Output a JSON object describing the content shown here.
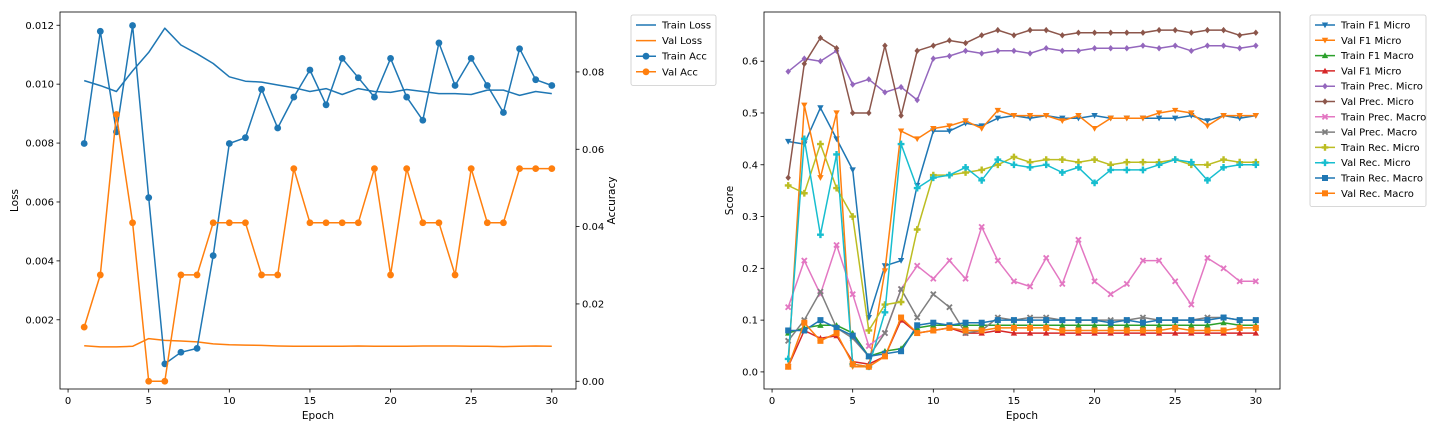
{
  "chart_data": [
    {
      "type": "line",
      "xlabel": "Epoch",
      "ylabel": "Loss",
      "ylabel_right": "Accuracy",
      "xlim": [
        -0.5,
        31.5
      ],
      "xticks": [
        0,
        5,
        10,
        15,
        20,
        25,
        30
      ],
      "ylim": [
        -0.00035,
        0.01245
      ],
      "yticks": [
        "0.002",
        "0.004",
        "0.006",
        "0.008",
        "0.010",
        "0.012"
      ],
      "ylim_right": [
        -0.002,
        0.0955
      ],
      "yticks_right": [
        "0.00",
        "0.02",
        "0.04",
        "0.06",
        "0.08"
      ],
      "legend_position": "outside top-right",
      "x": [
        1,
        2,
        3,
        4,
        5,
        6,
        7,
        8,
        9,
        10,
        11,
        12,
        13,
        14,
        15,
        16,
        17,
        18,
        19,
        20,
        21,
        22,
        23,
        24,
        25,
        26,
        27,
        28,
        29,
        30
      ],
      "series": [
        {
          "name": "Train Loss",
          "axis": "left",
          "color": "#1f77b4",
          "marker": "",
          "values": [
            0.01012,
            0.00995,
            0.00975,
            0.01045,
            0.01108,
            0.0119,
            0.01133,
            0.01103,
            0.0107,
            0.01025,
            0.0101,
            0.01007,
            0.00997,
            0.00988,
            0.00975,
            0.00985,
            0.00965,
            0.00985,
            0.00975,
            0.00972,
            0.00982,
            0.00975,
            0.00968,
            0.00968,
            0.00965,
            0.0098,
            0.0098,
            0.00962,
            0.00975,
            0.00968
          ]
        },
        {
          "name": "Val Loss",
          "axis": "left",
          "color": "#ff7f0e",
          "marker": "",
          "values": [
            0.00112,
            0.00108,
            0.00108,
            0.0011,
            0.00136,
            0.0013,
            0.00128,
            0.00125,
            0.00118,
            0.00115,
            0.00114,
            0.00113,
            0.00111,
            0.0011,
            0.0011,
            0.0011,
            0.0011,
            0.00111,
            0.0011,
            0.0011,
            0.0011,
            0.00111,
            0.00111,
            0.00111,
            0.0011,
            0.0011,
            0.00109,
            0.0011,
            0.00111,
            0.0011
          ]
        },
        {
          "name": "Train Acc",
          "axis": "right",
          "color": "#1f77b4",
          "marker": "o",
          "values": [
            0.0615,
            0.0905,
            0.0645,
            0.092,
            0.0475,
            0.0045,
            0.0075,
            0.0085,
            0.0325,
            0.0615,
            0.063,
            0.0755,
            0.0655,
            0.0735,
            0.0805,
            0.0715,
            0.0835,
            0.0785,
            0.0735,
            0.0835,
            0.0735,
            0.0675,
            0.0875,
            0.0765,
            0.0835,
            0.0765,
            0.0695,
            0.086,
            0.078,
            0.0765
          ]
        },
        {
          "name": "Val Acc",
          "axis": "right",
          "color": "#ff7f0e",
          "marker": "o",
          "values": [
            0.014,
            0.0275,
            0.069,
            0.041,
            0.0,
            0.0,
            0.0275,
            0.0275,
            0.041,
            0.041,
            0.041,
            0.0275,
            0.0275,
            0.055,
            0.041,
            0.041,
            0.041,
            0.041,
            0.055,
            0.0275,
            0.055,
            0.041,
            0.041,
            0.0275,
            0.055,
            0.041,
            0.041,
            0.055,
            0.055,
            0.055
          ]
        }
      ]
    },
    {
      "type": "line",
      "xlabel": "Epoch",
      "ylabel": "Score",
      "xlim": [
        -0.5,
        31.5
      ],
      "xticks": [
        0,
        5,
        10,
        15,
        20,
        25,
        30
      ],
      "ylim": [
        -0.033,
        0.695
      ],
      "yticks": [
        "0.0",
        "0.1",
        "0.2",
        "0.3",
        "0.4",
        "0.5",
        "0.6"
      ],
      "legend_position": "outside top-right",
      "x": [
        1,
        2,
        3,
        4,
        5,
        6,
        7,
        8,
        9,
        10,
        11,
        12,
        13,
        14,
        15,
        16,
        17,
        18,
        19,
        20,
        21,
        22,
        23,
        24,
        25,
        26,
        27,
        28,
        29,
        30
      ],
      "series": [
        {
          "name": "Train F1 Micro",
          "color": "#1f77b4",
          "marker": "v",
          "values": [
            0.445,
            0.44,
            0.51,
            0.45,
            0.39,
            0.105,
            0.205,
            0.215,
            0.36,
            0.465,
            0.465,
            0.48,
            0.475,
            0.49,
            0.495,
            0.49,
            0.495,
            0.49,
            0.49,
            0.495,
            0.49,
            0.49,
            0.49,
            0.49,
            0.49,
            0.495,
            0.485,
            0.495,
            0.49,
            0.495
          ]
        },
        {
          "name": "Val F1 Micro",
          "color": "#ff7f0e",
          "marker": "v",
          "values": [
            0.01,
            0.515,
            0.375,
            0.5,
            0.01,
            0.01,
            0.195,
            0.465,
            0.45,
            0.47,
            0.475,
            0.485,
            0.47,
            0.505,
            0.495,
            0.495,
            0.495,
            0.485,
            0.495,
            0.47,
            0.49,
            0.49,
            0.49,
            0.5,
            0.505,
            0.5,
            0.475,
            0.495,
            0.495,
            0.495
          ]
        },
        {
          "name": "Train F1 Macro",
          "color": "#2ca02c",
          "marker": "^",
          "values": [
            0.075,
            0.085,
            0.09,
            0.09,
            0.075,
            0.03,
            0.04,
            0.045,
            0.085,
            0.09,
            0.09,
            0.09,
            0.09,
            0.09,
            0.09,
            0.09,
            0.09,
            0.09,
            0.09,
            0.09,
            0.09,
            0.09,
            0.09,
            0.09,
            0.09,
            0.09,
            0.09,
            0.095,
            0.09,
            0.09
          ]
        },
        {
          "name": "Val F1 Micro",
          "color": "#d62728",
          "marker": "^",
          "values": [
            0.01,
            0.08,
            0.065,
            0.07,
            0.02,
            0.015,
            0.03,
            0.1,
            0.075,
            0.08,
            0.085,
            0.075,
            0.075,
            0.08,
            0.075,
            0.075,
            0.075,
            0.075,
            0.075,
            0.075,
            0.075,
            0.075,
            0.075,
            0.075,
            0.075,
            0.075,
            0.075,
            0.075,
            0.075,
            0.075
          ]
        },
        {
          "name": "Train Prec. Micro",
          "color": "#9467bd",
          "marker": "D",
          "values": [
            0.58,
            0.605,
            0.6,
            0.62,
            0.555,
            0.565,
            0.54,
            0.55,
            0.525,
            0.605,
            0.61,
            0.62,
            0.615,
            0.62,
            0.62,
            0.615,
            0.625,
            0.62,
            0.62,
            0.625,
            0.625,
            0.625,
            0.63,
            0.625,
            0.63,
            0.62,
            0.63,
            0.63,
            0.625,
            0.63
          ]
        },
        {
          "name": "Val Prec. Micro",
          "color": "#8c564b",
          "marker": "D",
          "values": [
            0.375,
            0.595,
            0.645,
            0.625,
            0.5,
            0.5,
            0.63,
            0.495,
            0.62,
            0.63,
            0.64,
            0.635,
            0.65,
            0.66,
            0.65,
            0.66,
            0.66,
            0.65,
            0.655,
            0.655,
            0.655,
            0.655,
            0.655,
            0.66,
            0.66,
            0.655,
            0.66,
            0.66,
            0.65,
            0.655
          ]
        },
        {
          "name": "Train Prec. Macro",
          "color": "#e377c2",
          "marker": "X",
          "values": [
            0.125,
            0.215,
            0.15,
            0.245,
            0.15,
            0.05,
            0.075,
            0.16,
            0.205,
            0.18,
            0.215,
            0.18,
            0.28,
            0.215,
            0.175,
            0.165,
            0.22,
            0.17,
            0.255,
            0.175,
            0.15,
            0.17,
            0.215,
            0.215,
            0.175,
            0.13,
            0.22,
            0.2,
            0.175,
            0.175
          ]
        },
        {
          "name": "Val Prec. Macro",
          "color": "#7f7f7f",
          "marker": "X",
          "values": [
            0.06,
            0.1,
            0.155,
            0.085,
            0.065,
            0.03,
            0.075,
            0.16,
            0.105,
            0.15,
            0.125,
            0.075,
            0.08,
            0.105,
            0.1,
            0.105,
            0.105,
            0.1,
            0.1,
            0.1,
            0.1,
            0.1,
            0.105,
            0.1,
            0.1,
            0.1,
            0.105,
            0.105,
            0.1,
            0.1
          ]
        },
        {
          "name": "Train Rec. Micro",
          "color": "#bcbd22",
          "marker": "P",
          "values": [
            0.36,
            0.345,
            0.44,
            0.355,
            0.3,
            0.08,
            0.13,
            0.135,
            0.275,
            0.38,
            0.38,
            0.385,
            0.39,
            0.4,
            0.415,
            0.405,
            0.41,
            0.41,
            0.405,
            0.41,
            0.4,
            0.405,
            0.405,
            0.405,
            0.41,
            0.4,
            0.4,
            0.41,
            0.405,
            0.405
          ]
        },
        {
          "name": "Val Rec. Micro",
          "color": "#17becf",
          "marker": "P",
          "values": [
            0.025,
            0.45,
            0.265,
            0.42,
            0.015,
            0.01,
            0.115,
            0.44,
            0.355,
            0.375,
            0.38,
            0.395,
            0.37,
            0.41,
            0.4,
            0.395,
            0.4,
            0.385,
            0.395,
            0.365,
            0.39,
            0.39,
            0.39,
            0.4,
            0.41,
            0.405,
            0.37,
            0.395,
            0.4,
            0.4
          ]
        },
        {
          "name": "Train Rec. Macro",
          "color": "#1f77b4",
          "marker": "s",
          "values": [
            0.08,
            0.08,
            0.1,
            0.085,
            0.07,
            0.03,
            0.035,
            0.04,
            0.09,
            0.095,
            0.09,
            0.095,
            0.095,
            0.1,
            0.1,
            0.1,
            0.1,
            0.1,
            0.1,
            0.1,
            0.095,
            0.1,
            0.095,
            0.1,
            0.1,
            0.1,
            0.1,
            0.105,
            0.1,
            0.1
          ]
        },
        {
          "name": "Val Rec. Macro",
          "color": "#ff7f0e",
          "marker": "s",
          "values": [
            0.01,
            0.095,
            0.06,
            0.075,
            0.015,
            0.01,
            0.03,
            0.105,
            0.075,
            0.08,
            0.085,
            0.08,
            0.08,
            0.085,
            0.085,
            0.085,
            0.085,
            0.08,
            0.08,
            0.08,
            0.08,
            0.08,
            0.08,
            0.08,
            0.085,
            0.08,
            0.08,
            0.08,
            0.085,
            0.085
          ]
        }
      ]
    }
  ]
}
